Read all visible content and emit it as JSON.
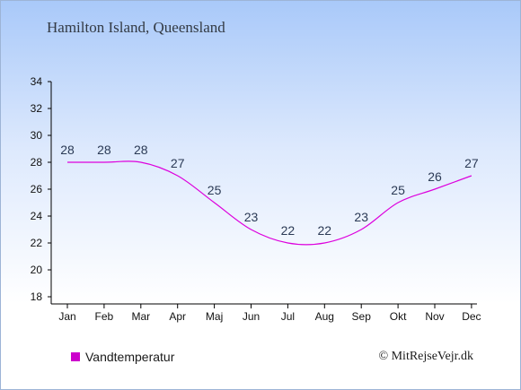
{
  "title": "Hamilton Island, Queensland",
  "credit": "© MitRejseVejr.dk",
  "colors": {
    "line": "#dd00dd",
    "swatch": "#cc00cc",
    "axis": "#000000",
    "label": "#2b3a55"
  },
  "chart_data": {
    "type": "line",
    "categories": [
      "Jan",
      "Feb",
      "Mar",
      "Apr",
      "Maj",
      "Jun",
      "Jul",
      "Aug",
      "Sep",
      "Okt",
      "Nov",
      "Dec"
    ],
    "series": [
      {
        "name": "Vandtemperatur",
        "values": [
          28,
          28,
          28,
          27,
          25,
          23,
          22,
          22,
          23,
          25,
          26,
          27
        ]
      }
    ],
    "yticks": [
      18,
      20,
      22,
      24,
      26,
      28,
      30,
      32,
      34
    ],
    "ylim": [
      18,
      34
    ],
    "grid": false,
    "legend": "bottom-left"
  }
}
